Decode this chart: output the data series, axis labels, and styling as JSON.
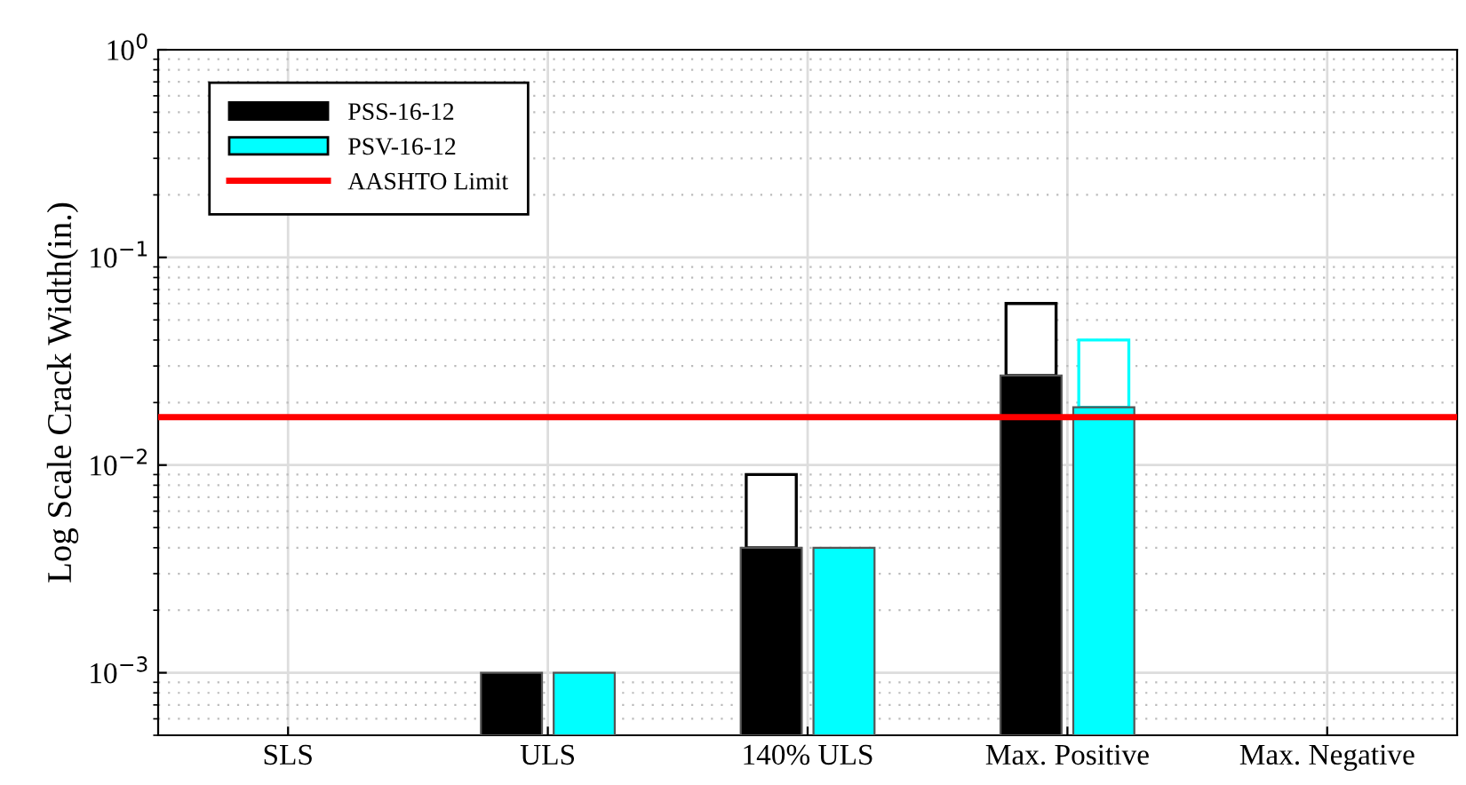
{
  "chart_data": {
    "type": "bar",
    "ylabel": "Log Scale Crack Width(in.)",
    "categories": [
      "SLS",
      "ULS",
      "140% ULS",
      "Max. Positive",
      "Max. Negative"
    ],
    "series": [
      {
        "name": "PSS-16-12",
        "color": "#000000",
        "values": [
          null,
          0.001,
          0.004,
          0.027,
          null
        ]
      },
      {
        "color": "#000000",
        "base": [
          null,
          null,
          0.004,
          0.027,
          null
        ],
        "values": [
          null,
          null,
          0.005,
          0.033,
          null
        ]
      },
      {
        "name": "PSV-16-12",
        "color": "#00ffff",
        "values": [
          null,
          0.001,
          0.004,
          0.019,
          null
        ]
      },
      {
        "color": "#00ffff",
        "base": [
          null,
          null,
          null,
          0.019,
          null
        ],
        "values": [
          null,
          null,
          null,
          0.021,
          null
        ]
      }
    ],
    "ref_lines": [
      {
        "axis": "y",
        "value": 0.017,
        "label": "AASHTO Limit",
        "color": "#ff0000"
      }
    ],
    "log": "y",
    "ylim": [
      0.0005,
      1
    ],
    "yticks": [
      {
        "value": 0.001,
        "label": "10$^{−3}$"
      },
      {
        "value": 0.01,
        "label": "10$^{−2}$"
      },
      {
        "value": 0.1,
        "label": "10$^{−1}$"
      },
      {
        "value": 1,
        "label": "10$^{0}$"
      }
    ],
    "grid": true,
    "legend": "top left"
  }
}
